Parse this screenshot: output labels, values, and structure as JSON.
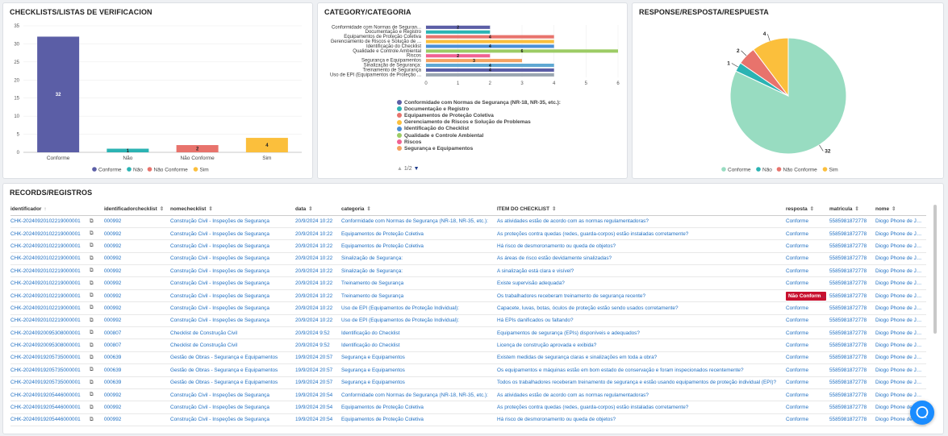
{
  "panels": {
    "checklists_title": "CHECKLISTS/LISTAS DE VERIFICACION",
    "category_title": "CATEGORY/CATEGORIA",
    "response_title": "RESPONSE/RESPOSTA/RESPUESTA",
    "records_title": "RECORDS/REGISTROS"
  },
  "colors": {
    "Conforme": "#5b5ea6",
    "Nao": "#2bb3b3",
    "NaoConforme": "#e8736c",
    "Sim": "#fbbf3c",
    "pieConforme": "#98dcc1"
  },
  "chart_data": [
    {
      "type": "bar",
      "categories": [
        "Conforme",
        "Não",
        "Não Conforme",
        "Sim"
      ],
      "values": [
        32,
        1,
        2,
        4
      ],
      "ylim": [
        0,
        35
      ],
      "yticks": [
        0,
        5,
        10,
        15,
        20,
        25,
        30,
        35
      ],
      "legend": [
        "Conforme",
        "Não",
        "Não Conforme",
        "Sim"
      ],
      "legend_position": "bottom"
    },
    {
      "type": "bar",
      "orientation": "horizontal",
      "categories": [
        "Conformidade com Normas de Seguran...",
        "Documentação e Registro",
        "Equipamentos de Proteção Coletiva",
        "Gerenciamento de Riscos e Solução de ...",
        "Identificação do Checklist",
        "Qualidade e Controle Ambiental",
        "Riscos",
        "Segurança e Equipamentos",
        "Sinalização de Segurança:",
        "Treinamento de Segurança",
        "Uso de EPI (Equipamentos de Proteção ..."
      ],
      "values": [
        2,
        2,
        4,
        4,
        4,
        6,
        2,
        3,
        4,
        4,
        4
      ],
      "labels": [
        "2",
        "",
        "4",
        "",
        "4",
        "6",
        "2",
        "3",
        "4",
        "4",
        ""
      ],
      "xlim": [
        0,
        6
      ],
      "xticks": [
        0,
        1,
        2,
        3,
        4,
        5,
        6
      ],
      "legend": [
        "Conformidade com Normas de Segurança (NR-18, NR-35, etc.):",
        "Documentação e Registro",
        "Equipamentos de Proteção Coletiva",
        "Gerenciamento de Riscos e Solução de Problemas",
        "Identificação do Checklist",
        "Qualidade e Controle Ambiental",
        "Riscos",
        "Segurança e Equipamentos"
      ],
      "legend_colors": [
        "#5b5ea6",
        "#2bb3b3",
        "#e8736c",
        "#fbbf3c",
        "#4b8fd6",
        "#9ccc65",
        "#f06292",
        "#f4a261",
        "#5fa8d3",
        "#5b5ea6",
        "#9aa5b1"
      ],
      "legend_page": "1/2"
    },
    {
      "type": "pie",
      "categories": [
        "Conforme",
        "Não",
        "Não Conforme",
        "Sim"
      ],
      "values": [
        32,
        1,
        2,
        4
      ],
      "labels": [
        "32",
        "1",
        "2",
        "4"
      ],
      "legend": [
        "Conforme",
        "Não",
        "Não Conforme",
        "Sim"
      ],
      "legend_position": "bottom"
    }
  ],
  "table": {
    "columns": [
      "identificador",
      "identificadorchecklist",
      "nomechecklist",
      "data",
      "categoria",
      "ITEM DO CHECKLIST",
      "resposta",
      "matricula",
      "nome"
    ],
    "sort_up": "↑",
    "sort_both": "⇕",
    "ext_glyph": "⧉",
    "rows": [
      [
        "CHK-20240920102219000001",
        "000992",
        "Construção Civil - Inspeções de Segurança",
        "20/9/2024 10:22",
        "Conformidade com Normas de Segurança (NR-18, NR-35, etc.):",
        "As atividades estão de acordo com as normas regulamentadoras?",
        "Conforme",
        "5585981872778",
        "Diogo Phone de Jesus"
      ],
      [
        "CHK-20240920102219000001",
        "000992",
        "Construção Civil - Inspeções de Segurança",
        "20/9/2024 10:22",
        "Equipamentos de Proteção Coletiva",
        "As proteções contra quedas (redes, guarda-corpos) estão instaladas corretamente?",
        "Conforme",
        "5585981872778",
        "Diogo Phone de Jesus"
      ],
      [
        "CHK-20240920102219000001",
        "000992",
        "Construção Civil - Inspeções de Segurança",
        "20/9/2024 10:22",
        "Equipamentos de Proteção Coletiva",
        "Há risco de desmoronamento ou queda de objetos?",
        "Conforme",
        "5585981872778",
        "Diogo Phone de Jesus"
      ],
      [
        "CHK-20240920102219000001",
        "000992",
        "Construção Civil - Inspeções de Segurança",
        "20/9/2024 10:22",
        "Sinalização de Segurança:",
        "As áreas de risco estão devidamente sinalizadas?",
        "Conforme",
        "5585981872778",
        "Diogo Phone de Jesus"
      ],
      [
        "CHK-20240920102219000001",
        "000992",
        "Construção Civil - Inspeções de Segurança",
        "20/9/2024 10:22",
        "Sinalização de Segurança:",
        "A sinalização está clara e visível?",
        "Conforme",
        "5585981872778",
        "Diogo Phone de Jesus"
      ],
      [
        "CHK-20240920102219000001",
        "000992",
        "Construção Civil - Inspeções de Segurança",
        "20/9/2024 10:22",
        "Treinamento de Segurança",
        "Existe supervisão adequada?",
        "Conforme",
        "5585981872778",
        "Diogo Phone de Jesus"
      ],
      [
        "CHK-20240920102219000001",
        "000992",
        "Construção Civil - Inspeções de Segurança",
        "20/9/2024 10:22",
        "Treinamento de Segurança",
        "Os trabalhadores receberam treinamento de segurança recente?",
        "Não Conforme",
        "5585981872778",
        "Diogo Phone de Jesus"
      ],
      [
        "CHK-20240920102219000001",
        "000992",
        "Construção Civil - Inspeções de Segurança",
        "20/9/2024 10:22",
        "Uso de EPI (Equipamentos de Proteção Individual):",
        "Capacete, luvas, botas, óculos de proteção estão sendo usados corretamente?",
        "Conforme",
        "5585981872778",
        "Diogo Phone de Jesus"
      ],
      [
        "CHK-20240920102219000001",
        "000992",
        "Construção Civil - Inspeções de Segurança",
        "20/9/2024 10:22",
        "Uso de EPI (Equipamentos de Proteção Individual):",
        "Há EPIs danificados ou faltando?",
        "Conforme",
        "5585981872778",
        "Diogo Phone de Jesus"
      ],
      [
        "CHK-20240920095308000001",
        "000807",
        "Checklist de Construção Civil",
        "20/9/2024 9:52",
        "Identificação do Checklist",
        "Equipamentos de segurança (EPIs) disponíveis e adequados?",
        "Conforme",
        "5585981872778",
        "Diogo Phone de Jesus"
      ],
      [
        "CHK-20240920095308000001",
        "000807",
        "Checklist de Construção Civil",
        "20/9/2024 9:52",
        "Identificação do Checklist",
        "Licença de construção aprovada e exibida?",
        "Conforme",
        "5585981872778",
        "Diogo Phone de Jesus"
      ],
      [
        "CHK-20240919205735000001",
        "000639",
        "Gestão de Obras - Segurança e Equipamentos",
        "19/9/2024 20:57",
        "Segurança e Equipamentos",
        "Existem medidas de segurança claras e sinalizações em toda a obra?",
        "Conforme",
        "5585981872778",
        "Diogo Phone de Jesus"
      ],
      [
        "CHK-20240919205735000001",
        "000639",
        "Gestão de Obras - Segurança e Equipamentos",
        "19/9/2024 20:57",
        "Segurança e Equipamentos",
        "Os equipamentos e máquinas estão em bom estado de conservação e foram inspecionados recentemente?",
        "Conforme",
        "5585981872778",
        "Diogo Phone de Jesus"
      ],
      [
        "CHK-20240919205735000001",
        "000639",
        "Gestão de Obras - Segurança e Equipamentos",
        "19/9/2024 20:57",
        "Segurança e Equipamentos",
        "Todos os trabalhadores receberam treinamento de segurança e estão usando equipamentos de proteção individual (EPI)?",
        "Conforme",
        "5585981872778",
        "Diogo Phone de Jesus"
      ],
      [
        "CHK-20240919205446000001",
        "000992",
        "Construção Civil - Inspeções de Segurança",
        "19/9/2024 20:54",
        "Conformidade com Normas de Segurança (NR-18, NR-35, etc.):",
        "As atividades estão de acordo com as normas regulamentadoras?",
        "Conforme",
        "5585981872778",
        "Diogo Phone de Jesus"
      ],
      [
        "CHK-20240919205446000001",
        "000992",
        "Construção Civil - Inspeções de Segurança",
        "19/9/2024 20:54",
        "Equipamentos de Proteção Coletiva",
        "As proteções contra quedas (redes, guarda-corpos) estão instaladas corretamente?",
        "Conforme",
        "5585981872778",
        "Diogo Phone de Jesus"
      ],
      [
        "CHK-20240919205446000001",
        "000992",
        "Construção Civil - Inspeções de Segurança",
        "19/9/2024 20:54",
        "Equipamentos de Proteção Coletiva",
        "Há risco de desmoronamento ou queda de objetos?",
        "Conforme",
        "5585981872778",
        "Diogo Phone de Jesus"
      ]
    ]
  }
}
